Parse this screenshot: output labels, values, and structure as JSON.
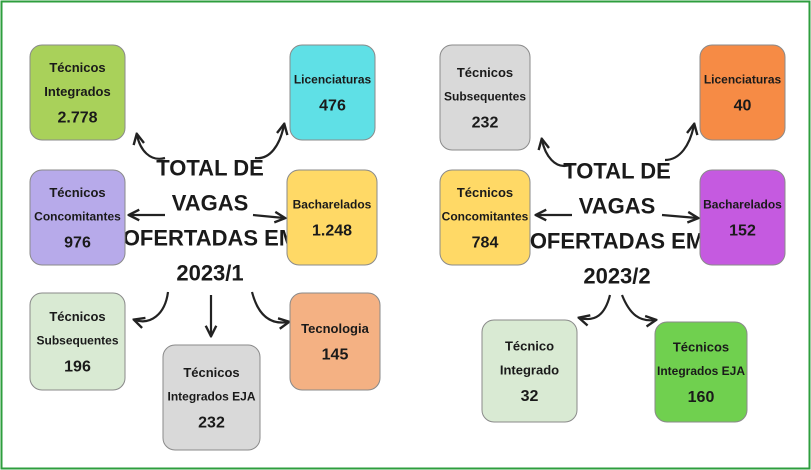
{
  "panels": [
    {
      "center": {
        "lines": [
          "TOTAL DE",
          "VAGAS",
          "OFERTADAS EM",
          "2023/1"
        ]
      },
      "nodes": [
        {
          "lines": [
            "Técnicos",
            "Integrados"
          ],
          "value": "2.778"
        },
        {
          "lines": [
            "Licenciaturas"
          ],
          "value": "476"
        },
        {
          "lines": [
            "Técnicos",
            "Concomitantes"
          ],
          "value": "976"
        },
        {
          "lines": [
            "Bacharelados"
          ],
          "value": "1.248"
        },
        {
          "lines": [
            "Técnicos",
            "Subsequentes"
          ],
          "value": "196"
        },
        {
          "lines": [
            "Técnicos",
            "Integrados EJA"
          ],
          "value": "232"
        },
        {
          "lines": [
            "Tecnologia"
          ],
          "value": "145"
        }
      ]
    },
    {
      "center": {
        "lines": [
          "TOTAL DE",
          "VAGAS",
          "OFERTADAS EM",
          "2023/2"
        ]
      },
      "nodes": [
        {
          "lines": [
            "Técnicos",
            "Subsequentes"
          ],
          "value": "232"
        },
        {
          "lines": [
            "Licenciaturas"
          ],
          "value": "40"
        },
        {
          "lines": [
            "Técnicos",
            "Concomitantes"
          ],
          "value": "784"
        },
        {
          "lines": [
            "Bacharelados"
          ],
          "value": "152"
        },
        {
          "lines": [
            "Técnico",
            "Integrado"
          ],
          "value": "32"
        },
        {
          "lines": [
            "Técnicos",
            "Integrados EJA"
          ],
          "value": "160"
        }
      ]
    }
  ]
}
